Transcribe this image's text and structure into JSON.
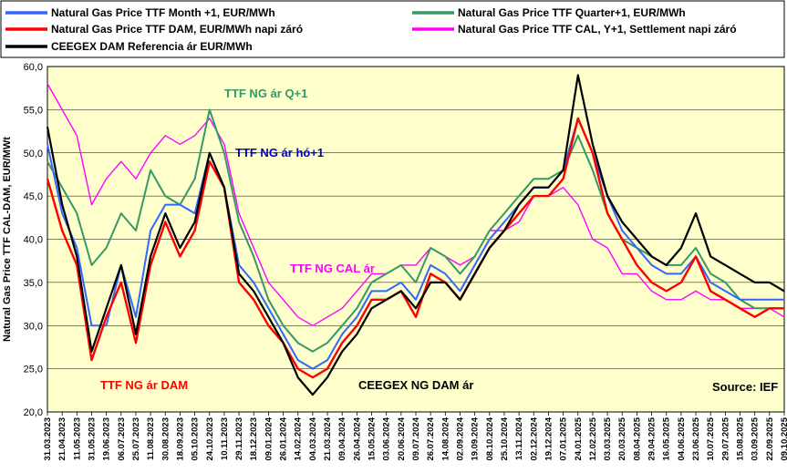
{
  "chart_data": {
    "type": "line",
    "ylabel": "Natural Gas Price TTF CAL-DAM, EUR/MWt",
    "ylim": [
      20,
      60
    ],
    "yticks": [
      "20,0",
      "25,0",
      "30,0",
      "35,0",
      "40,0",
      "45,0",
      "50,0",
      "55,0",
      "60,0"
    ],
    "ytick_values": [
      20,
      25,
      30,
      35,
      40,
      45,
      50,
      55,
      60
    ],
    "grid": true,
    "x_dates": [
      "31.03.2023",
      "21.04.2023",
      "11.05.2023",
      "31.05.2023",
      "19.06.2023",
      "06.07.2023",
      "25.07.2023",
      "11.08.2023",
      "30.08.2023",
      "18.09.2023",
      "05.10.2023",
      "24.10.2023",
      "10.11.2023",
      "29.11.2023",
      "18.12.2023",
      "09.01.2024",
      "26.01.2024",
      "14.02.2024",
      "04.03.2024",
      "21.03.2024",
      "09.04.2024",
      "26.04.2024",
      "15.05.2024",
      "03.06.2024",
      "20.06.2024",
      "09.07.2024",
      "26.07.2024",
      "14.08.2024",
      "02.09.2024",
      "19.09.2024",
      "08.10.2024",
      "25.10.2024",
      "13.11.2024",
      "02.12.2024",
      "19.12.2024",
      "07.01.2025",
      "24.01.2025",
      "12.02.2025",
      "03.03.2025",
      "20.03.2025",
      "08.04.2025",
      "29.04.2025",
      "16.05.2025",
      "04.06.2025",
      "23.06.2025",
      "10.07.2025",
      "29.07.2025",
      "15.08.2025",
      "03.09.2025",
      "22.09.2025",
      "09.10.2025"
    ],
    "series": [
      {
        "name": "Natural Gas Price TTF Month +1, EUR/MWh",
        "color": "#3366ff",
        "width": 2.0,
        "values": [
          51,
          43,
          39,
          30,
          30,
          37,
          31,
          41,
          44,
          44,
          43,
          50,
          46,
          37,
          35,
          32,
          29,
          26,
          25,
          26,
          29,
          31,
          34,
          34,
          35,
          33,
          37,
          36,
          34,
          37,
          40,
          42,
          44,
          46,
          46,
          48,
          54,
          50,
          45,
          41,
          39,
          37,
          36,
          36,
          38,
          35,
          34,
          33,
          33,
          33,
          33
        ]
      },
      {
        "name": "Natural Gas Price TTF Quarter+1, EUR/MWh",
        "color": "#339966",
        "width": 2.0,
        "values": [
          49,
          46,
          43,
          37,
          39,
          43,
          41,
          48,
          45,
          44,
          47,
          55,
          50,
          42,
          38,
          33,
          30,
          28,
          27,
          28,
          30,
          32,
          35,
          36,
          37,
          35,
          39,
          38,
          36,
          38,
          41,
          43,
          45,
          47,
          47,
          48,
          52,
          48,
          43,
          40,
          39,
          38,
          37,
          37,
          39,
          36,
          35,
          33,
          32,
          32,
          32
        ]
      },
      {
        "name": "Natural Gas Price TTF DAM, EUR/MWh napi záró",
        "color": "#ff0000",
        "width": 2.4,
        "values": [
          47,
          41,
          37,
          26,
          31,
          35,
          28,
          37,
          42,
          38,
          41,
          49,
          46,
          35,
          33,
          30,
          28,
          25,
          24,
          25,
          28,
          30,
          33,
          33,
          34,
          31,
          36,
          35,
          33,
          36,
          39,
          41,
          43,
          45,
          45,
          47,
          54,
          50,
          43,
          40,
          37,
          35,
          34,
          35,
          38,
          34,
          33,
          32,
          31,
          32,
          32
        ]
      },
      {
        "name": "Natural Gas Price TTF CAL, Y+1, Settlement napi záró",
        "color": "#ff00ff",
        "width": 1.4,
        "values": [
          58,
          55,
          52,
          44,
          47,
          49,
          47,
          50,
          52,
          51,
          52,
          54,
          51,
          43,
          39,
          35,
          33,
          31,
          30,
          31,
          32,
          34,
          36,
          36,
          37,
          37,
          39,
          38,
          37,
          38,
          41,
          41,
          42,
          45,
          45,
          46,
          44,
          40,
          39,
          36,
          36,
          34,
          33,
          33,
          34,
          33,
          33,
          32,
          32,
          32,
          31
        ]
      },
      {
        "name": "CEEGEX DAM Referencia ár  EUR/MWh",
        "color": "#000000",
        "width": 2.2,
        "values": [
          53,
          44,
          38,
          27,
          32,
          37,
          29,
          38,
          43,
          39,
          42,
          50,
          46,
          36,
          34,
          31,
          28,
          24,
          22,
          24,
          27,
          29,
          32,
          33,
          34,
          32,
          35,
          35,
          33,
          36,
          39,
          41,
          44,
          46,
          46,
          48,
          59,
          51,
          45,
          42,
          40,
          38,
          37,
          39,
          43,
          38,
          37,
          36,
          35,
          35,
          34
        ]
      }
    ],
    "annotations": [
      {
        "text": "TTF NG ár Q+1",
        "color": "#339966"
      },
      {
        "text": "TTF NG ár hó+1",
        "color": "#0000cc"
      },
      {
        "text": "TTF NG CAL ár",
        "color": "#ff00ff"
      },
      {
        "text": "TTF NG ár DAM",
        "color": "#ff0000"
      },
      {
        "text": "CEEGEX NG DAM ár",
        "color": "#000000"
      },
      {
        "text": "Source: IEF",
        "color": "#000000"
      }
    ]
  }
}
